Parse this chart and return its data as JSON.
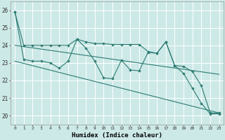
{
  "xlabel": "Humidex (Indice chaleur)",
  "bg_color": "#cce9e7",
  "line_color": "#2d7b72",
  "grid_color": "#ffffff",
  "ylim": [
    19.5,
    26.5
  ],
  "xlim": [
    -0.5,
    23.5
  ],
  "yticks": [
    20,
    21,
    22,
    23,
    24,
    25,
    26
  ],
  "xticks": [
    0,
    1,
    2,
    3,
    4,
    5,
    6,
    7,
    8,
    9,
    10,
    11,
    12,
    13,
    14,
    15,
    16,
    17,
    18,
    19,
    20,
    21,
    22,
    23
  ],
  "series1": [
    25.9,
    24.0,
    24.0,
    24.0,
    24.0,
    24.0,
    24.0,
    24.35,
    24.2,
    24.1,
    24.1,
    24.05,
    24.05,
    24.05,
    24.05,
    23.65,
    23.55,
    24.2,
    22.85,
    22.8,
    22.5,
    21.7,
    20.15,
    20.15
  ],
  "series2": [
    25.9,
    23.2,
    23.1,
    23.1,
    23.0,
    22.7,
    23.1,
    24.35,
    23.85,
    23.1,
    22.15,
    22.1,
    23.15,
    22.6,
    22.55,
    23.6,
    23.55,
    24.2,
    22.85,
    22.4,
    21.55,
    20.7,
    20.1,
    20.1
  ],
  "trend1_x": [
    0,
    23
  ],
  "trend1_y": [
    24.0,
    22.35
  ],
  "trend2_x": [
    0,
    23
  ],
  "trend2_y": [
    23.1,
    20.15
  ]
}
